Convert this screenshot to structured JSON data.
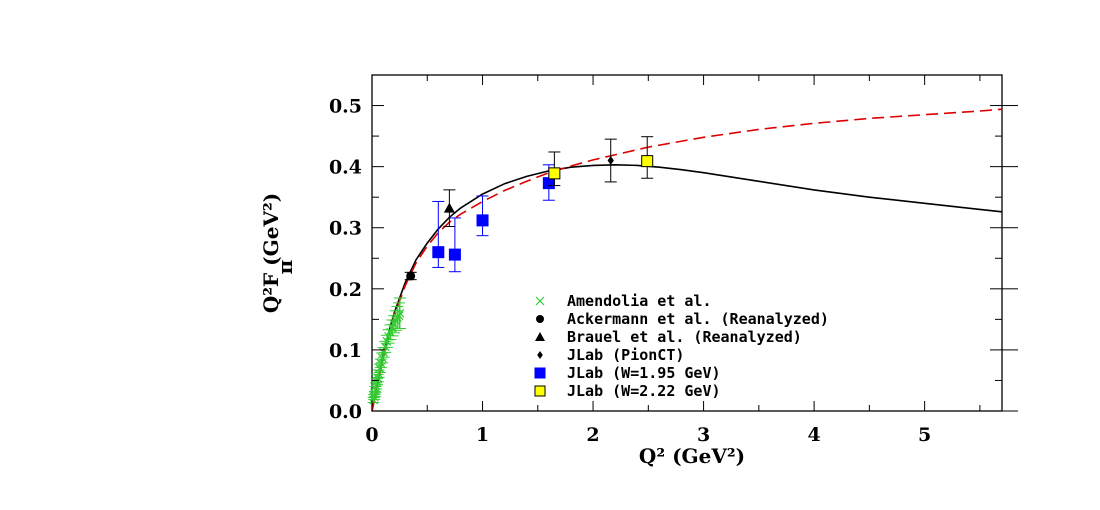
{
  "chart_data": {
    "type": "scatter",
    "xlabel": "Q² (GeV²)",
    "ylabel": "Q²F (GeV²)",
    "ylabel_sub": "π",
    "xlim": [
      0,
      5.7
    ],
    "ylim": [
      0,
      0.55
    ],
    "xticks": [
      0,
      1,
      2,
      3,
      4,
      5
    ],
    "xtick_labels": [
      "0",
      "1",
      "2",
      "3",
      "4",
      "5"
    ],
    "yticks": [
      0,
      0.1,
      0.2,
      0.3,
      0.4,
      0.5
    ],
    "ytick_labels": [
      "0.0",
      "0.1",
      "0.2",
      "0.3",
      "0.4",
      "0.5"
    ],
    "legend_position": "bottom-right",
    "series": [
      {
        "name": "Amendolia et al.",
        "marker": "x",
        "color": "#33cc33",
        "points": [
          {
            "x": 0.015,
            "y": 0.018,
            "err": 0.004
          },
          {
            "x": 0.02,
            "y": 0.023,
            "err": 0.004
          },
          {
            "x": 0.026,
            "y": 0.028,
            "err": 0.004
          },
          {
            "x": 0.032,
            "y": 0.035,
            "err": 0.005
          },
          {
            "x": 0.038,
            "y": 0.041,
            "err": 0.005
          },
          {
            "x": 0.045,
            "y": 0.048,
            "err": 0.005
          },
          {
            "x": 0.052,
            "y": 0.054,
            "err": 0.006
          },
          {
            "x": 0.06,
            "y": 0.061,
            "err": 0.006
          },
          {
            "x": 0.07,
            "y": 0.07,
            "err": 0.007
          },
          {
            "x": 0.08,
            "y": 0.078,
            "err": 0.007
          },
          {
            "x": 0.092,
            "y": 0.087,
            "err": 0.008
          },
          {
            "x": 0.105,
            "y": 0.096,
            "err": 0.008
          },
          {
            "x": 0.12,
            "y": 0.105,
            "err": 0.009
          },
          {
            "x": 0.135,
            "y": 0.114,
            "err": 0.01
          },
          {
            "x": 0.15,
            "y": 0.122,
            "err": 0.011
          },
          {
            "x": 0.168,
            "y": 0.129,
            "err": 0.012
          },
          {
            "x": 0.185,
            "y": 0.136,
            "err": 0.013
          },
          {
            "x": 0.2,
            "y": 0.142,
            "err": 0.014
          },
          {
            "x": 0.215,
            "y": 0.148,
            "err": 0.016
          },
          {
            "x": 0.23,
            "y": 0.153,
            "err": 0.018
          },
          {
            "x": 0.245,
            "y": 0.156,
            "err": 0.021
          },
          {
            "x": 0.253,
            "y": 0.16,
            "err": 0.025
          }
        ]
      },
      {
        "name": "Ackermann et al. (Reanalyzed)",
        "marker": "circle",
        "color": "#000000",
        "points": [
          {
            "x": 0.35,
            "y": 0.221,
            "err": 0.006
          }
        ]
      },
      {
        "name": "Brauel et al. (Reanalyzed)",
        "marker": "triangle",
        "color": "#000000",
        "points": [
          {
            "x": 0.7,
            "y": 0.332,
            "err": 0.03
          }
        ]
      },
      {
        "name": "JLab (PionCT)",
        "marker": "diamond",
        "color": "#000000",
        "points": [
          {
            "x": 2.16,
            "y": 0.41,
            "err": 0.035
          }
        ]
      },
      {
        "name": "JLab (W=1.95 GeV)",
        "marker": "square",
        "color": "#0000ff",
        "points": [
          {
            "x": 0.6,
            "y": 0.26,
            "err_up": 0.083,
            "err_down": 0.025
          },
          {
            "x": 0.75,
            "y": 0.256,
            "err_up": 0.06,
            "err_down": 0.028
          },
          {
            "x": 1.0,
            "y": 0.312,
            "err_up": 0.04,
            "err_down": 0.025
          },
          {
            "x": 1.6,
            "y": 0.373,
            "err_up": 0.03,
            "err_down": 0.028
          }
        ]
      },
      {
        "name": "JLab (W=2.22 GeV)",
        "marker": "square",
        "color": "#ffff00",
        "points": [
          {
            "x": 1.65,
            "y": 0.389,
            "err_up": 0.035,
            "err_down": 0.02
          },
          {
            "x": 2.49,
            "y": 0.409,
            "err_up": 0.04,
            "err_down": 0.028
          }
        ]
      }
    ],
    "curves": [
      {
        "style": "solid",
        "color": "#000000",
        "x": [
          0,
          0.05,
          0.1,
          0.15,
          0.2,
          0.3,
          0.4,
          0.5,
          0.6,
          0.7,
          0.8,
          1.0,
          1.2,
          1.4,
          1.6,
          1.8,
          2.0,
          2.2,
          2.4,
          2.6,
          2.8,
          3.0,
          3.5,
          4.0,
          4.5,
          5.0,
          5.5,
          5.7
        ],
        "y": [
          0,
          0.045,
          0.09,
          0.128,
          0.16,
          0.21,
          0.248,
          0.275,
          0.298,
          0.317,
          0.332,
          0.355,
          0.372,
          0.384,
          0.393,
          0.399,
          0.402,
          0.403,
          0.402,
          0.399,
          0.395,
          0.39,
          0.376,
          0.362,
          0.35,
          0.34,
          0.33,
          0.326
        ]
      },
      {
        "style": "dashed",
        "color": "#dd0000",
        "x": [
          0,
          0.05,
          0.1,
          0.15,
          0.2,
          0.3,
          0.4,
          0.5,
          0.6,
          0.7,
          0.8,
          1.0,
          1.2,
          1.4,
          1.6,
          1.8,
          2.0,
          2.5,
          3.0,
          3.5,
          4.0,
          4.5,
          5.0,
          5.5,
          5.7
        ],
        "y": [
          0,
          0.042,
          0.086,
          0.124,
          0.155,
          0.205,
          0.243,
          0.27,
          0.292,
          0.309,
          0.322,
          0.343,
          0.361,
          0.376,
          0.39,
          0.401,
          0.411,
          0.432,
          0.448,
          0.461,
          0.471,
          0.479,
          0.485,
          0.491,
          0.494
        ]
      }
    ]
  }
}
